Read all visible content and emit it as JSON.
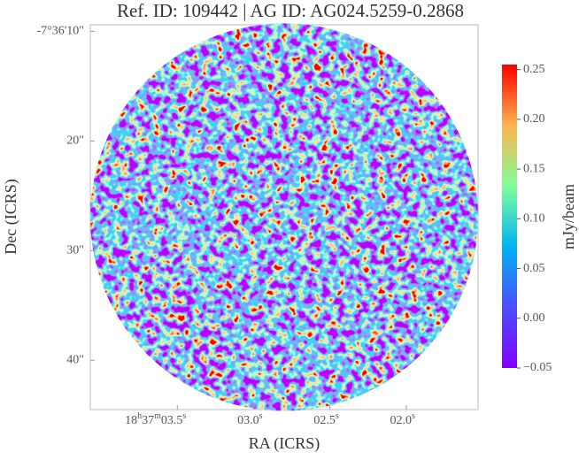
{
  "chart_data": {
    "type": "image",
    "title": "Ref. ID: 109442 | AG ID: AG024.5259-0.2868",
    "xlabel": "RA (ICRS)",
    "ylabel": "Dec (ICRS)",
    "xlim": [
      4.07,
      1.53
    ],
    "xticks": [
      {
        "value": 3.5,
        "label": "18h37m03.5s"
      },
      {
        "value": 3.0,
        "label": "03.0s"
      },
      {
        "value": 2.5,
        "label": "02.5s"
      },
      {
        "value": 2.0,
        "label": "02.0s"
      }
    ],
    "ylim": [
      44.5,
      9.4
    ],
    "yticks": [
      {
        "value": 10,
        "label": "-7°36'10\""
      },
      {
        "value": 20,
        "label": "20\""
      },
      {
        "value": 30,
        "label": "30\""
      },
      {
        "value": 40,
        "label": "40\""
      }
    ],
    "colormap": "rainbow",
    "clim": [
      -0.05,
      0.255
    ],
    "colorbar_label": "mJy/beam",
    "colorbar_ticks": [
      {
        "value": -0.05,
        "label": "−0.05"
      },
      {
        "value": 0,
        "label": "0.00"
      },
      0.05,
      {
        "value": 0.1,
        "label": "0.10"
      },
      0.15,
      {
        "value": 0.2,
        "label": "0.20"
      },
      0.25
    ]
  }
}
